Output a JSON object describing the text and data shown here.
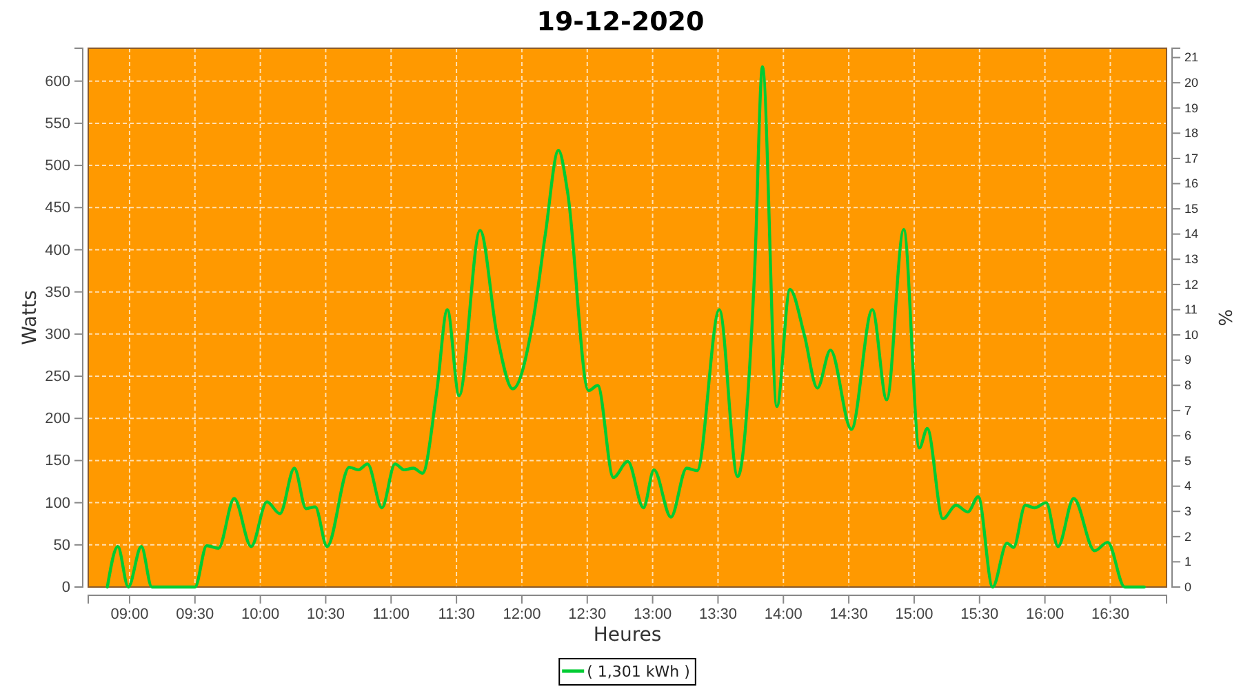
{
  "chart_data": {
    "type": "line",
    "title": "19-12-2020",
    "xlabel": "Heures",
    "ylabel": "Watts",
    "y2label": "%",
    "xlim": [
      8.684,
      16.93
    ],
    "ylim": [
      0,
      639
    ],
    "y2lim": [
      0,
      21.37
    ],
    "xticks": [
      {
        "value": 9,
        "label": "09:00"
      },
      {
        "value": 9.5,
        "label": "09:30"
      },
      {
        "value": 10,
        "label": "10:00"
      },
      {
        "value": 10.5,
        "label": "10:30"
      },
      {
        "value": 11,
        "label": "11:00"
      },
      {
        "value": 11.5,
        "label": "11:30"
      },
      {
        "value": 12,
        "label": "12:00"
      },
      {
        "value": 12.5,
        "label": "12:30"
      },
      {
        "value": 13,
        "label": "13:00"
      },
      {
        "value": 13.5,
        "label": "13:30"
      },
      {
        "value": 14,
        "label": "14:00"
      },
      {
        "value": 14.5,
        "label": "14:30"
      },
      {
        "value": 15,
        "label": "15:00"
      },
      {
        "value": 15.5,
        "label": "15:30"
      },
      {
        "value": 16,
        "label": "16:00"
      },
      {
        "value": 16.5,
        "label": "16:30"
      }
    ],
    "yticks": [
      0,
      50,
      100,
      150,
      200,
      250,
      300,
      350,
      400,
      450,
      500,
      550,
      600
    ],
    "y2ticks": [
      0,
      1,
      2,
      3,
      4,
      5,
      6,
      7,
      8,
      9,
      10,
      11,
      12,
      13,
      14,
      15,
      16,
      17,
      18,
      19,
      20,
      21
    ],
    "grid": true,
    "legend": "bottom",
    "marker": "none",
    "line_style": "solid",
    "series": [
      {
        "name": "( 1,301 kWh )",
        "color": "#00cc33",
        "x": [
          8.83,
          8.91,
          8.99,
          9.09,
          9.17,
          9.25,
          9.5,
          9.59,
          9.68,
          9.8,
          9.93,
          10.05,
          10.15,
          10.26,
          10.35,
          10.42,
          10.51,
          10.68,
          10.75,
          10.82,
          10.93,
          11.03,
          11.1,
          11.17,
          11.24,
          11.35,
          11.43,
          11.52,
          11.68,
          11.81,
          11.93,
          12.09,
          12.18,
          12.28,
          12.35,
          12.51,
          12.58,
          12.7,
          12.81,
          12.93,
          13.01,
          13.14,
          13.26,
          13.34,
          13.51,
          13.65,
          13.78,
          13.84,
          13.95,
          14.05,
          14.16,
          14.26,
          14.36,
          14.52,
          14.68,
          14.79,
          14.92,
          15.04,
          15.1,
          15.22,
          15.32,
          15.41,
          15.49,
          15.6,
          15.71,
          15.76,
          15.85,
          15.92,
          16.01,
          16.1,
          16.22,
          16.38,
          16.48,
          16.61,
          16.76
        ],
        "values": [
          0,
          48,
          0,
          48,
          0,
          0,
          0,
          49,
          46,
          105,
          48,
          101,
          87,
          141,
          93,
          95,
          48,
          142,
          139,
          146,
          94,
          146,
          139,
          141,
          135,
          233,
          329,
          227,
          423,
          299,
          235,
          320,
          419,
          518,
          468,
          233,
          239,
          130,
          149,
          94,
          139,
          83,
          141,
          138,
          329,
          131,
          375,
          617,
          214,
          353,
          299,
          236,
          281,
          187,
          329,
          222,
          424,
          165,
          188,
          81,
          97,
          89,
          107,
          0,
          52,
          47,
          97,
          94,
          100,
          48,
          105,
          43,
          53,
          0,
          0
        ]
      }
    ]
  }
}
